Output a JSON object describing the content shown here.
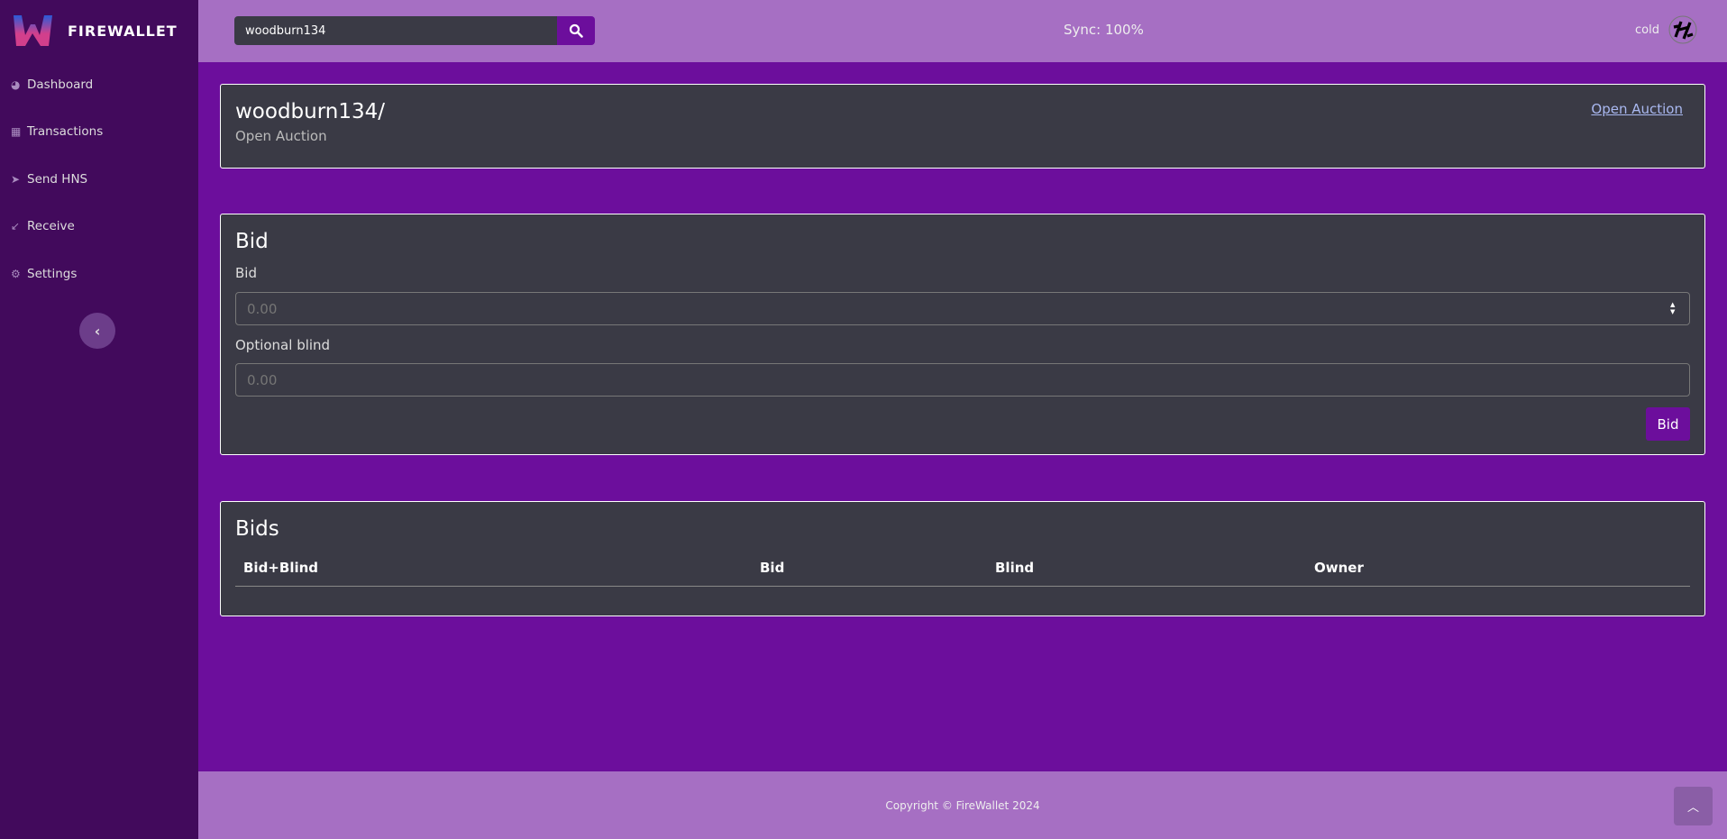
{
  "sidebar": {
    "brand": "FIREWALLET",
    "items": [
      {
        "label": "Dashboard",
        "icon": "dashboard-icon"
      },
      {
        "label": "Transactions",
        "icon": "table-icon"
      },
      {
        "label": "Send HNS",
        "icon": "send-icon"
      },
      {
        "label": "Receive",
        "icon": "receive-icon"
      },
      {
        "label": "Settings",
        "icon": "gear-icon"
      }
    ]
  },
  "header": {
    "search_value": "woodburn134",
    "sync": "Sync: 100%",
    "account": "cold"
  },
  "domain_card": {
    "title": "woodburn134/",
    "subtitle": "Open Auction",
    "link": "Open Auction"
  },
  "bid_card": {
    "title": "Bid",
    "bid_label": "Bid",
    "bid_placeholder": "0.00",
    "blind_label": "Optional blind",
    "blind_placeholder": "0.00",
    "button": "Bid"
  },
  "bids_card": {
    "title": "Bids",
    "columns": [
      "Bid+Blind",
      "Bid",
      "Blind",
      "Owner"
    ],
    "rows": []
  },
  "footer": {
    "copyright": "Copyright © FireWallet 2024"
  },
  "colors": {
    "sidebar": "#420a5c",
    "header": "#a66fc3",
    "main": "#6c0e9c",
    "card": "#3a3a45"
  }
}
